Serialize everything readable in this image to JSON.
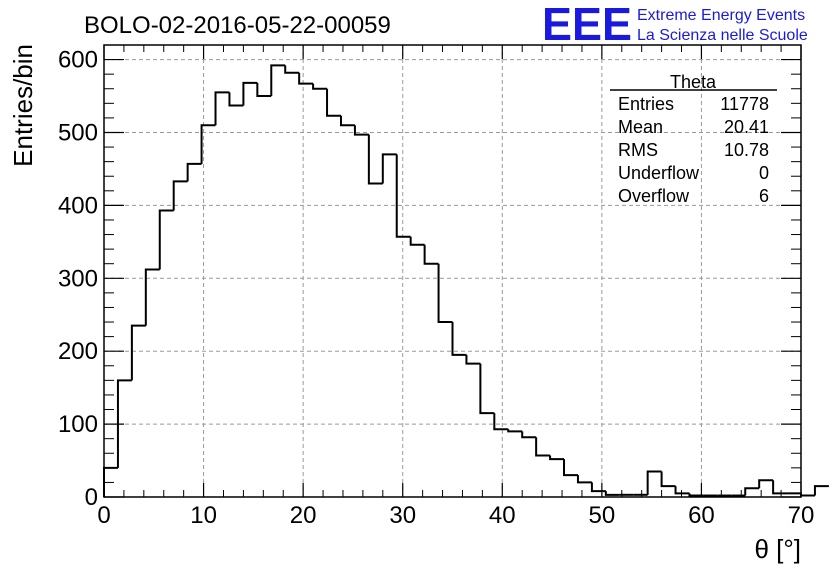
{
  "header": {
    "title": "BOLO-02-2016-05-22-00059",
    "logo_text": "EEE",
    "logo_line1": "Extreme Energy Events",
    "logo_line2": "La Scienza nelle Scuole"
  },
  "colors": {
    "logo": "#1a1adf",
    "grid": "#9a9a9a",
    "line": "#000000"
  },
  "stats": {
    "title": "Theta",
    "rows": [
      {
        "label": "Entries",
        "value": "11778"
      },
      {
        "label": "Mean",
        "value": "20.41"
      },
      {
        "label": "RMS",
        "value": "10.78"
      },
      {
        "label": "Underflow",
        "value": "0"
      },
      {
        "label": "Overflow",
        "value": "6"
      }
    ]
  },
  "chart_data": {
    "type": "histogram",
    "title": "BOLO-02-2016-05-22-00059",
    "xlabel": "θ [°]",
    "ylabel": "Entries/bin",
    "xlim": [
      0,
      70
    ],
    "ylim": [
      0,
      620
    ],
    "bin_width": 1.4,
    "bin_edges_start": 0,
    "x_ticks": [
      0,
      10,
      20,
      30,
      40,
      50,
      60,
      70
    ],
    "y_ticks": [
      0,
      100,
      200,
      300,
      400,
      500,
      600
    ],
    "grid": true,
    "values": [
      40,
      160,
      235,
      312,
      393,
      433,
      457,
      510,
      555,
      537,
      568,
      550,
      592,
      582,
      567,
      560,
      523,
      510,
      497,
      430,
      470,
      357,
      346,
      320,
      240,
      195,
      183,
      115,
      93,
      90,
      82,
      57,
      52,
      30,
      20,
      8,
      3,
      3,
      3,
      35,
      15,
      5,
      2,
      2,
      2,
      2,
      12,
      23,
      5,
      5,
      2,
      15
    ]
  }
}
